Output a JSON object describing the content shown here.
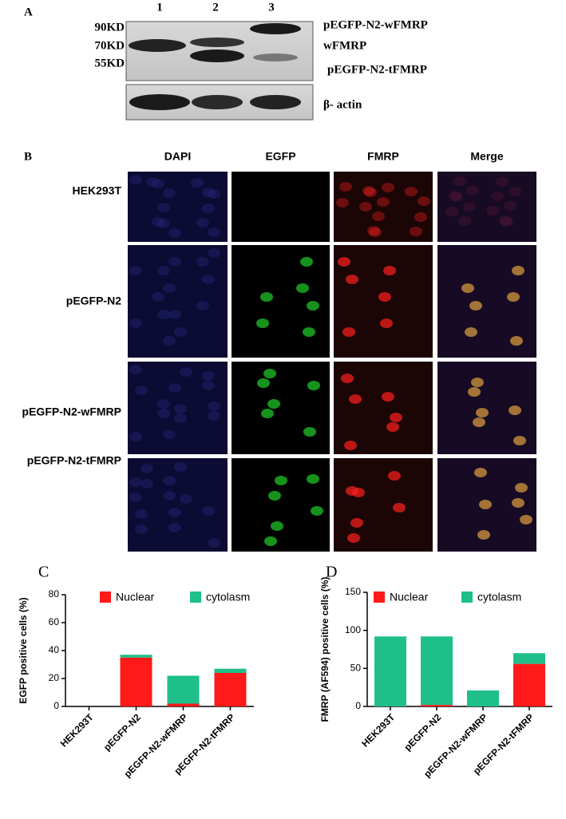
{
  "panel_a": {
    "label": "A",
    "lanes": [
      "1",
      "2",
      "3"
    ],
    "markers": [
      "90KD",
      "70KD",
      "55KD"
    ],
    "bands": [
      "pEGFP-N2-wFMRP",
      "wFMRP",
      "pEGFP-N2-tFMRP"
    ],
    "loading_control": "β- actin"
  },
  "panel_b": {
    "label": "B",
    "columns": [
      "DAPI",
      "EGFP",
      "FMRP",
      "Merge"
    ],
    "rows": [
      "HEK293T",
      "pEGFP-N2",
      "pEGFP-N2-wFMRP",
      "pEGFP-N2-tFMRP"
    ]
  },
  "chart_data": [
    {
      "type": "bar",
      "panel": "C",
      "stacked": true,
      "y_label": "EGFP positive cells (%)",
      "categories": [
        "HEK293T",
        "pEGFP-N2",
        "pEGFP-N2-wFMRP",
        "pEGFP-N2-tFMRP"
      ],
      "series": [
        {
          "name": "Nuclear",
          "color": "#ff1a1a",
          "values": [
            0,
            35,
            2,
            24
          ]
        },
        {
          "name": "cytolasm",
          "color": "#1fbf8a",
          "values": [
            0,
            2,
            20,
            3
          ]
        }
      ],
      "ylim": [
        0,
        80
      ],
      "yticks": [
        0,
        20,
        40,
        60,
        80
      ]
    },
    {
      "type": "bar",
      "panel": "D",
      "stacked": true,
      "y_label": "FMRP (AF594) positive cells (%)",
      "categories": [
        "HEK293T",
        "pEGFP-N2",
        "pEGFP-N2-wFMRP",
        "pEGFP-N2-tFMRP"
      ],
      "series": [
        {
          "name": "Nuclear",
          "color": "#ff1a1a",
          "values": [
            0,
            2,
            0,
            56
          ]
        },
        {
          "name": "cytolasm",
          "color": "#1fbf8a",
          "values": [
            92,
            90,
            21,
            14
          ]
        }
      ],
      "ylim": [
        0,
        150
      ],
      "yticks": [
        0,
        50,
        100,
        150
      ]
    }
  ]
}
